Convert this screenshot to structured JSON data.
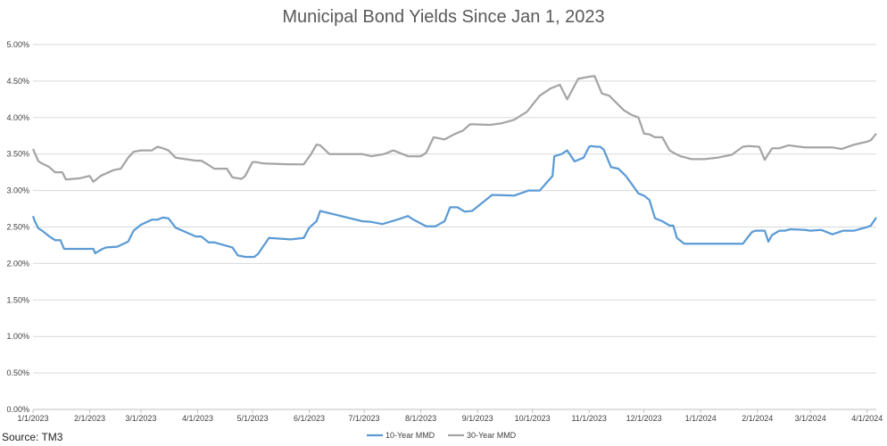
{
  "chart_data": {
    "type": "line",
    "title": "Municipal Bond Yields Since Jan 1, 2023",
    "source": "Source: TM3",
    "xlabel": "",
    "ylabel": "",
    "ylim": [
      0,
      5.0
    ],
    "y_ticks": [
      0,
      0.5,
      1.0,
      1.5,
      2.0,
      2.5,
      3.0,
      3.5,
      4.0,
      4.5,
      5.0
    ],
    "y_tick_labels": [
      "0.00%",
      "0.50%",
      "1.00%",
      "1.50%",
      "2.00%",
      "2.50%",
      "3.00%",
      "3.50%",
      "4.00%",
      "4.50%",
      "5.00%"
    ],
    "x_range": [
      "2023-01-01",
      "2024-04-06"
    ],
    "x_tick_dates": [
      "2023-01-01",
      "2023-02-01",
      "2023-03-01",
      "2023-04-01",
      "2023-05-01",
      "2023-06-01",
      "2023-07-01",
      "2023-08-01",
      "2023-09-01",
      "2023-10-01",
      "2023-11-01",
      "2023-12-01",
      "2024-01-01",
      "2024-02-01",
      "2024-03-01",
      "2024-04-01"
    ],
    "x_tick_labels": [
      "1/1/2023",
      "2/1/2023",
      "3/1/2023",
      "4/1/2023",
      "5/1/2023",
      "6/1/2023",
      "7/1/2023",
      "8/1/2023",
      "9/1/2023",
      "10/1/2023",
      "11/1/2023",
      "12/1/2023",
      "1/1/2024",
      "2/1/2024",
      "3/1/2024",
      "4/1/2024"
    ],
    "grid": true,
    "legend_position": "bottom",
    "series": [
      {
        "name": "10-Year MMD",
        "color": "#5B9BD5",
        "x": [
          "2023-01-01",
          "2023-01-02",
          "2023-01-04",
          "2023-01-06",
          "2023-01-10",
          "2023-01-13",
          "2023-01-16",
          "2023-01-18",
          "2023-01-23",
          "2023-02-03",
          "2023-02-04",
          "2023-02-08",
          "2023-02-10",
          "2023-02-16",
          "2023-02-22",
          "2023-02-25",
          "2023-03-01",
          "2023-03-07",
          "2023-03-10",
          "2023-03-13",
          "2023-03-16",
          "2023-03-20",
          "2023-03-31",
          "2023-04-03",
          "2023-04-07",
          "2023-04-10",
          "2023-04-20",
          "2023-04-23",
          "2023-04-27",
          "2023-05-02",
          "2023-05-04",
          "2023-05-10",
          "2023-05-22",
          "2023-05-29",
          "2023-06-01",
          "2023-06-05",
          "2023-06-07",
          "2023-06-30",
          "2023-07-05",
          "2023-07-11",
          "2023-07-19",
          "2023-07-25",
          "2023-07-28",
          "2023-08-04",
          "2023-08-09",
          "2023-08-14",
          "2023-08-17",
          "2023-08-21",
          "2023-08-25",
          "2023-08-29",
          "2023-09-09",
          "2023-09-21",
          "2023-09-29",
          "2023-10-05",
          "2023-10-12",
          "2023-10-13",
          "2023-10-17",
          "2023-10-20",
          "2023-10-24",
          "2023-10-29",
          "2023-11-01",
          "2023-11-02",
          "2023-11-05",
          "2023-11-07",
          "2023-11-09",
          "2023-11-13",
          "2023-11-17",
          "2023-11-21",
          "2023-11-24",
          "2023-11-28",
          "2023-12-01",
          "2023-12-04",
          "2023-12-07",
          "2023-12-11",
          "2023-12-15",
          "2023-12-17",
          "2023-12-19",
          "2023-12-23",
          "2023-12-27",
          "2024-01-04",
          "2024-01-14",
          "2024-01-24",
          "2024-01-29",
          "2024-01-31",
          "2024-02-02",
          "2024-02-05",
          "2024-02-07",
          "2024-02-09",
          "2024-02-13",
          "2024-02-16",
          "2024-02-19",
          "2024-02-27",
          "2024-03-01",
          "2024-03-07",
          "2024-03-13",
          "2024-03-19",
          "2024-03-25",
          "2024-04-01",
          "2024-04-03",
          "2024-04-06"
        ],
        "values": [
          2.65,
          2.58,
          2.48,
          2.45,
          2.37,
          2.32,
          2.32,
          2.2,
          2.2,
          2.2,
          2.14,
          2.2,
          2.22,
          2.23,
          2.3,
          2.45,
          2.53,
          2.6,
          2.6,
          2.63,
          2.62,
          2.49,
          2.37,
          2.37,
          2.29,
          2.29,
          2.22,
          2.11,
          2.09,
          2.09,
          2.13,
          2.35,
          2.33,
          2.35,
          2.49,
          2.58,
          2.72,
          2.58,
          2.57,
          2.54,
          2.6,
          2.65,
          2.6,
          2.51,
          2.51,
          2.58,
          2.77,
          2.77,
          2.71,
          2.72,
          2.94,
          2.93,
          3.0,
          3.0,
          3.2,
          3.47,
          3.5,
          3.55,
          3.4,
          3.45,
          3.6,
          3.61,
          3.6,
          3.6,
          3.56,
          3.32,
          3.3,
          3.2,
          3.1,
          2.96,
          2.93,
          2.87,
          2.62,
          2.58,
          2.52,
          2.52,
          2.35,
          2.27,
          2.27,
          2.27,
          2.27,
          2.27,
          2.43,
          2.45,
          2.45,
          2.45,
          2.3,
          2.39,
          2.45,
          2.45,
          2.47,
          2.46,
          2.45,
          2.46,
          2.4,
          2.45,
          2.45,
          2.5,
          2.52,
          2.63
        ]
      },
      {
        "name": "30-Year MMD",
        "color": "#A5A5A5",
        "x": [
          "2023-01-01",
          "2023-01-04",
          "2023-01-06",
          "2023-01-10",
          "2023-01-13",
          "2023-01-17",
          "2023-01-19",
          "2023-01-23",
          "2023-01-27",
          "2023-02-01",
          "2023-02-03",
          "2023-02-07",
          "2023-02-14",
          "2023-02-18",
          "2023-02-22",
          "2023-02-25",
          "2023-03-01",
          "2023-03-07",
          "2023-03-10",
          "2023-03-13",
          "2023-03-16",
          "2023-03-20",
          "2023-03-31",
          "2023-04-03",
          "2023-04-07",
          "2023-04-10",
          "2023-04-17",
          "2023-04-20",
          "2023-04-25",
          "2023-04-27",
          "2023-05-01",
          "2023-05-03",
          "2023-05-07",
          "2023-05-22",
          "2023-05-29",
          "2023-06-02",
          "2023-06-05",
          "2023-06-07",
          "2023-06-12",
          "2023-06-30",
          "2023-07-05",
          "2023-07-12",
          "2023-07-17",
          "2023-07-25",
          "2023-08-01",
          "2023-08-04",
          "2023-08-08",
          "2023-08-14",
          "2023-08-20",
          "2023-08-24",
          "2023-08-28",
          "2023-09-08",
          "2023-09-14",
          "2023-09-21",
          "2023-09-28",
          "2023-10-05",
          "2023-10-11",
          "2023-10-16",
          "2023-10-20",
          "2023-10-26",
          "2023-11-01",
          "2023-11-04",
          "2023-11-08",
          "2023-11-12",
          "2023-11-16",
          "2023-11-20",
          "2023-11-24",
          "2023-11-28",
          "2023-12-01",
          "2023-12-04",
          "2023-12-07",
          "2023-12-11",
          "2023-12-15",
          "2023-12-17",
          "2023-12-21",
          "2023-12-27",
          "2024-01-03",
          "2024-01-10",
          "2024-01-18",
          "2024-01-24",
          "2024-01-27",
          "2024-02-02",
          "2024-02-05",
          "2024-02-07",
          "2024-02-09",
          "2024-02-13",
          "2024-02-18",
          "2024-02-27",
          "2024-03-06",
          "2024-03-13",
          "2024-03-18",
          "2024-03-25",
          "2024-04-01",
          "2024-04-03",
          "2024-04-06"
        ],
        "values": [
          3.57,
          3.4,
          3.37,
          3.32,
          3.25,
          3.25,
          3.15,
          3.16,
          3.17,
          3.2,
          3.12,
          3.2,
          3.28,
          3.3,
          3.45,
          3.53,
          3.55,
          3.55,
          3.6,
          3.58,
          3.55,
          3.45,
          3.41,
          3.41,
          3.35,
          3.3,
          3.3,
          3.18,
          3.16,
          3.2,
          3.39,
          3.39,
          3.37,
          3.36,
          3.36,
          3.5,
          3.63,
          3.62,
          3.5,
          3.5,
          3.47,
          3.5,
          3.55,
          3.47,
          3.47,
          3.52,
          3.73,
          3.7,
          3.78,
          3.82,
          3.91,
          3.9,
          3.92,
          3.97,
          4.08,
          4.3,
          4.4,
          4.45,
          4.25,
          4.53,
          4.56,
          4.57,
          4.33,
          4.3,
          4.2,
          4.1,
          4.04,
          4.0,
          3.78,
          3.77,
          3.73,
          3.73,
          3.55,
          3.52,
          3.47,
          3.43,
          3.43,
          3.45,
          3.49,
          3.6,
          3.61,
          3.6,
          3.42,
          3.5,
          3.58,
          3.58,
          3.62,
          3.59,
          3.59,
          3.59,
          3.57,
          3.63,
          3.67,
          3.69,
          3.78
        ]
      }
    ]
  }
}
